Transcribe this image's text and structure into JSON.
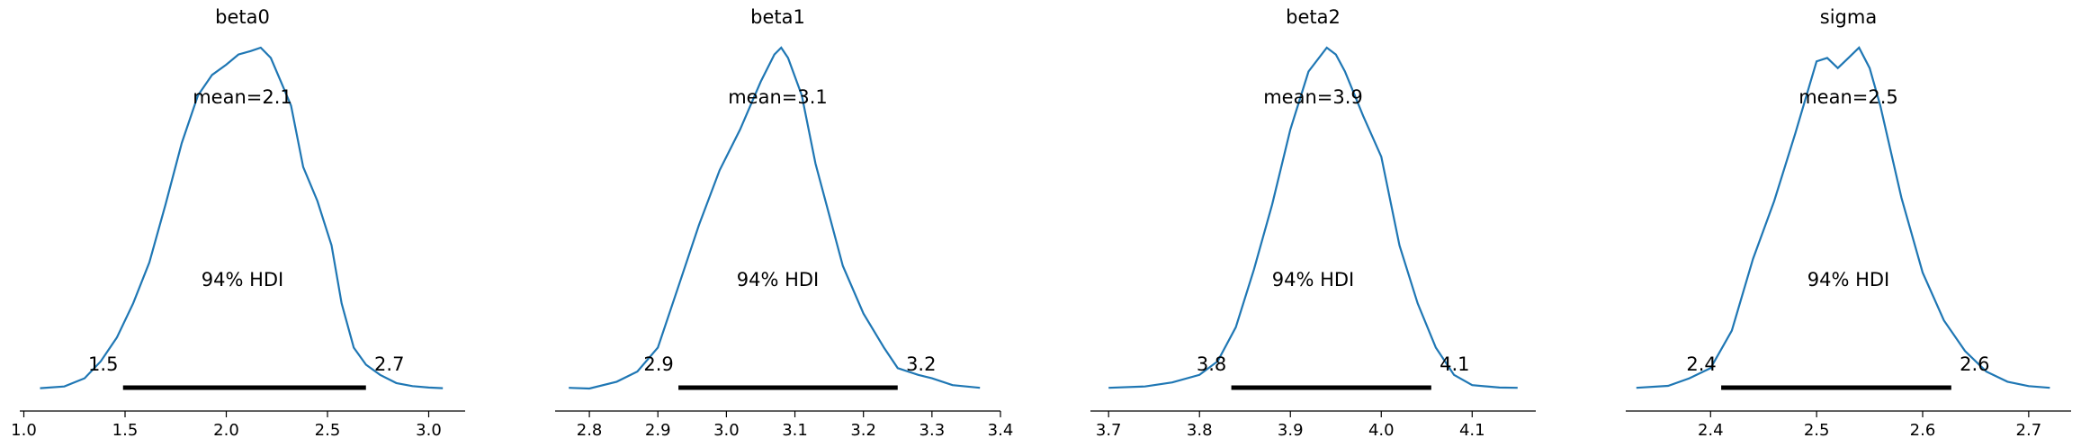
{
  "chart_data": [
    {
      "type": "line",
      "title": "beta0",
      "x_ticks": [
        1.0,
        1.5,
        2.0,
        2.5,
        3.0
      ],
      "x_tick_labels": [
        "1.0",
        "1.5",
        "2.0",
        "2.5",
        "3.0"
      ],
      "xlim": [
        0.98,
        3.18
      ],
      "x": [
        1.08,
        1.2,
        1.3,
        1.38,
        1.46,
        1.54,
        1.62,
        1.7,
        1.78,
        1.86,
        1.93,
        2.0,
        2.06,
        2.12,
        2.17,
        2.22,
        2.27,
        2.32,
        2.38,
        2.45,
        2.52,
        2.57,
        2.63,
        2.69,
        2.76,
        2.84,
        2.92,
        3.0,
        3.07
      ],
      "y": [
        0.001,
        0.006,
        0.03,
        0.08,
        0.15,
        0.25,
        0.37,
        0.54,
        0.72,
        0.86,
        0.92,
        0.95,
        0.98,
        0.99,
        1.0,
        0.97,
        0.9,
        0.83,
        0.65,
        0.55,
        0.42,
        0.25,
        0.12,
        0.07,
        0.04,
        0.016,
        0.007,
        0.003,
        0.001
      ],
      "mean_label": "mean=2.1",
      "hdi_label": "94% HDI",
      "hdi": [
        1.49,
        2.69
      ],
      "hdi_low_label": "1.5",
      "hdi_high_label": "2.7"
    },
    {
      "type": "line",
      "title": "beta1",
      "x_ticks": [
        2.8,
        2.9,
        3.0,
        3.1,
        3.2,
        3.3,
        3.4
      ],
      "x_tick_labels": [
        "2.8",
        "2.9",
        "3.0",
        "3.1",
        "3.2",
        "3.3",
        "3.4"
      ],
      "xlim": [
        2.75,
        3.4
      ],
      "x": [
        2.77,
        2.8,
        2.84,
        2.87,
        2.9,
        2.93,
        2.96,
        2.99,
        3.02,
        3.05,
        3.07,
        3.08,
        3.09,
        3.11,
        3.13,
        3.15,
        3.17,
        3.2,
        3.23,
        3.25,
        3.28,
        3.3,
        3.33,
        3.35,
        3.37
      ],
      "y": [
        0.002,
        0.0,
        0.02,
        0.05,
        0.12,
        0.3,
        0.48,
        0.64,
        0.76,
        0.9,
        0.98,
        1.0,
        0.97,
        0.86,
        0.66,
        0.51,
        0.36,
        0.22,
        0.12,
        0.06,
        0.04,
        0.03,
        0.01,
        0.006,
        0.002
      ],
      "mean_label": "mean=3.1",
      "hdi_label": "94% HDI",
      "hdi": [
        2.93,
        3.25
      ],
      "hdi_low_label": "2.9",
      "hdi_high_label": "3.2"
    },
    {
      "type": "line",
      "title": "beta2",
      "x_ticks": [
        3.7,
        3.8,
        3.9,
        4.0,
        4.1
      ],
      "x_tick_labels": [
        "3.7",
        "3.8",
        "3.9",
        "4.0",
        "4.1"
      ],
      "xlim": [
        3.68,
        4.17
      ],
      "x": [
        3.7,
        3.74,
        3.77,
        3.8,
        3.82,
        3.84,
        3.86,
        3.88,
        3.9,
        3.92,
        3.94,
        3.95,
        3.96,
        3.98,
        4.0,
        4.02,
        4.04,
        4.06,
        4.08,
        4.1,
        4.13,
        4.15
      ],
      "y": [
        0.002,
        0.006,
        0.018,
        0.04,
        0.08,
        0.18,
        0.35,
        0.54,
        0.76,
        0.93,
        1.0,
        0.98,
        0.93,
        0.8,
        0.68,
        0.42,
        0.25,
        0.12,
        0.04,
        0.01,
        0.003,
        0.002
      ],
      "mean_label": "mean=3.9",
      "hdi_label": "94% HDI",
      "hdi": [
        3.835,
        4.055
      ],
      "hdi_low_label": "3.8",
      "hdi_high_label": "4.1"
    },
    {
      "type": "line",
      "title": "sigma",
      "x_ticks": [
        2.4,
        2.5,
        2.6,
        2.7
      ],
      "x_tick_labels": [
        "2.4",
        "2.5",
        "2.6",
        "2.7"
      ],
      "xlim": [
        2.32,
        2.74
      ],
      "x": [
        2.33,
        2.36,
        2.38,
        2.4,
        2.42,
        2.44,
        2.46,
        2.48,
        2.5,
        2.51,
        2.52,
        2.53,
        2.54,
        2.55,
        2.56,
        2.58,
        2.6,
        2.62,
        2.64,
        2.66,
        2.68,
        2.7,
        2.72
      ],
      "y": [
        0.002,
        0.008,
        0.03,
        0.06,
        0.17,
        0.38,
        0.55,
        0.75,
        0.96,
        0.97,
        0.94,
        0.97,
        1.0,
        0.94,
        0.83,
        0.56,
        0.34,
        0.2,
        0.11,
        0.05,
        0.02,
        0.007,
        0.002
      ],
      "mean_label": "mean=2.5",
      "hdi_label": "94% HDI",
      "hdi": [
        2.41,
        2.627
      ],
      "hdi_low_label": "2.4",
      "hdi_high_label": "2.6"
    }
  ]
}
